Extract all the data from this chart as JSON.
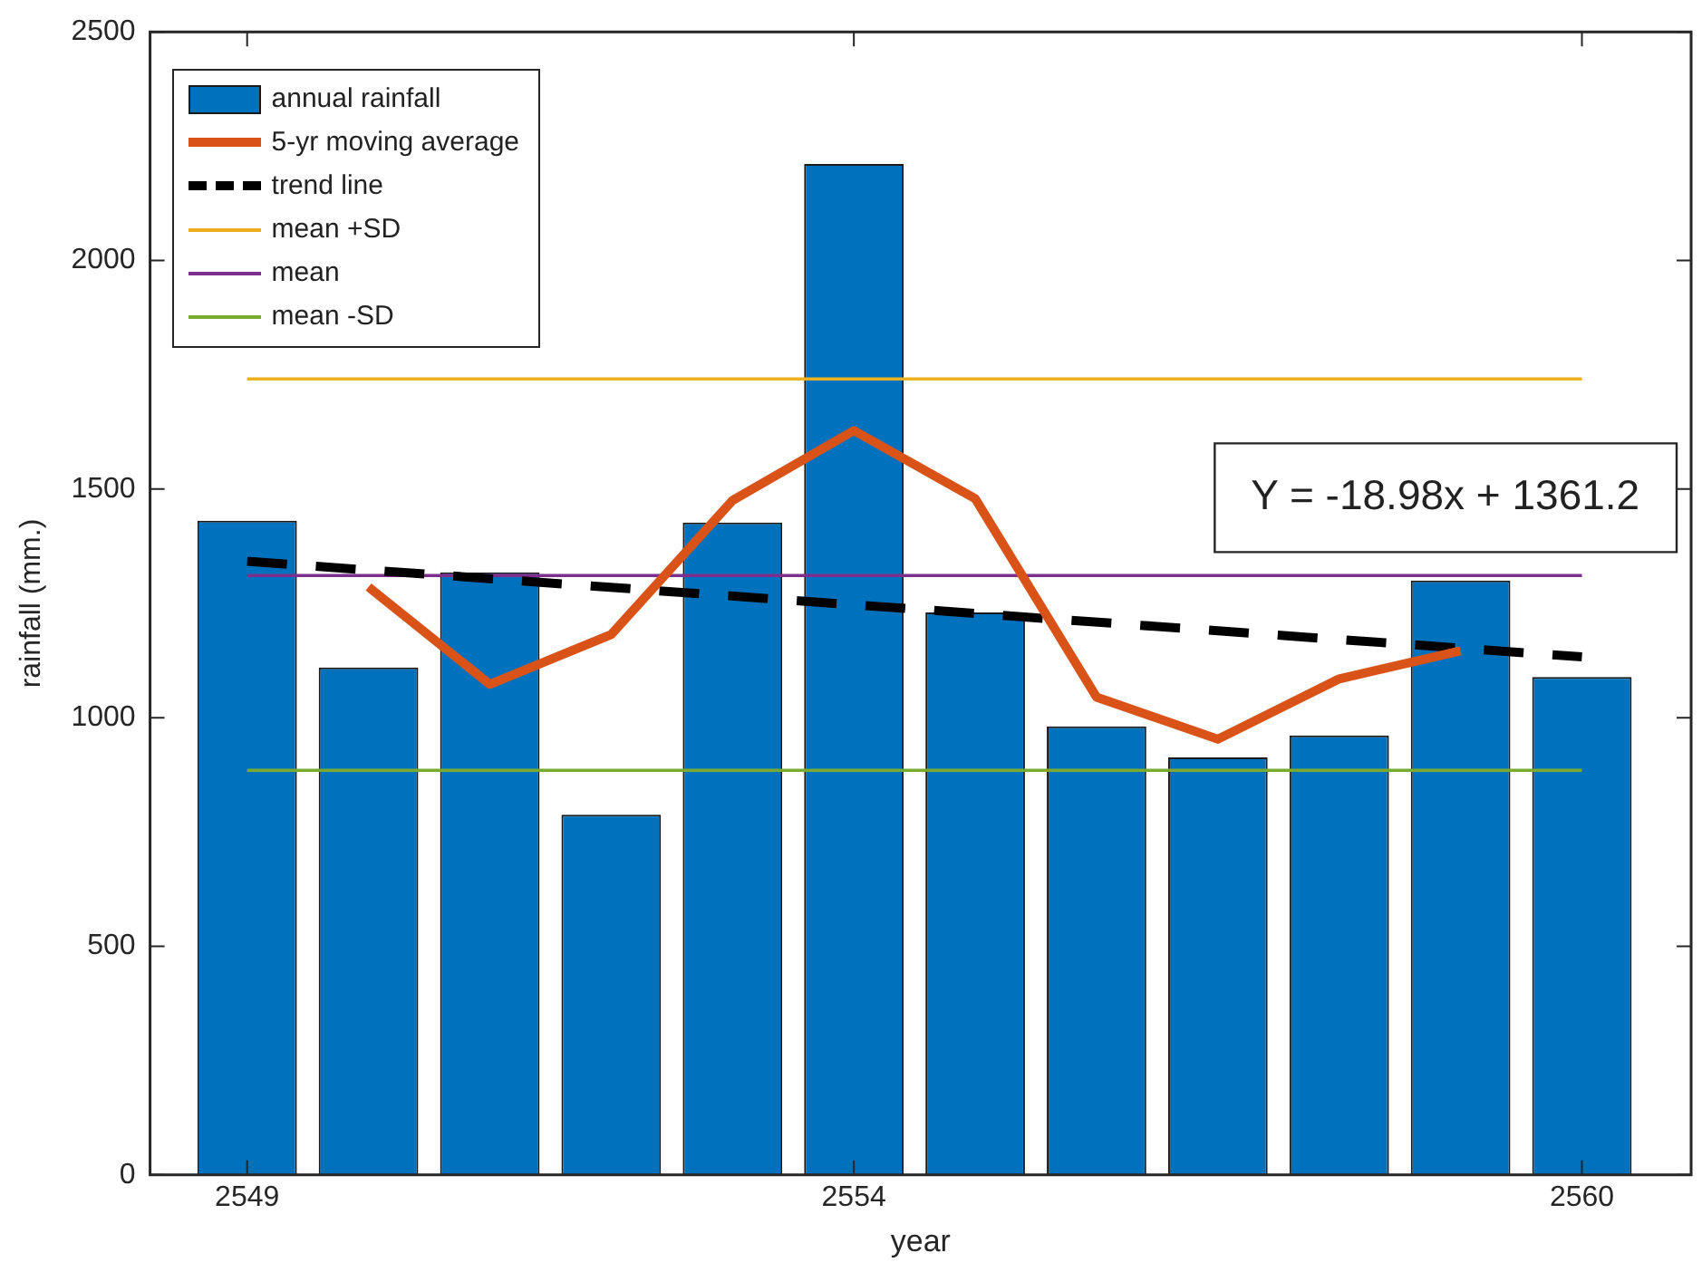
{
  "chart_data": {
    "type": "bar",
    "xlabel": "year",
    "ylabel": "rainfall (mm.)",
    "x": [
      2549,
      2550,
      2551,
      2552,
      2553,
      2554,
      2555,
      2556,
      2557,
      2558,
      2559,
      2560
    ],
    "series": [
      {
        "name": "annual rainfall",
        "color": "#0072bd",
        "values": [
          1431,
          1110,
          1318,
          788,
          1427,
          2211,
          1230,
          981,
          913,
          961,
          1300,
          1089
        ]
      },
      {
        "name": "5-yr moving average",
        "type": "line",
        "color": "#d95319",
        "x": [
          2550,
          2551,
          2552,
          2553,
          2554,
          2555,
          2556,
          2557,
          2558,
          2559
        ],
        "values": [
          1286,
          1073,
          1182,
          1475,
          1628,
          1479,
          1045,
          953,
          1085,
          1146
        ]
      },
      {
        "name": "trend line",
        "type": "line",
        "color": "#000000",
        "line_style": "dashed",
        "x": [
          2549,
          2560
        ],
        "values": [
          1342,
          1133
        ]
      },
      {
        "name": "mean +SD",
        "type": "line",
        "color": "#edb120",
        "x": [
          2549,
          2560
        ],
        "values": [
          1741,
          1741
        ]
      },
      {
        "name": "mean",
        "type": "line",
        "color": "#7e2f8e",
        "x": [
          2549,
          2560
        ],
        "values": [
          1311,
          1311
        ]
      },
      {
        "name": "mean -SD",
        "type": "line",
        "color": "#77ac30",
        "x": [
          2549,
          2560
        ],
        "values": [
          885,
          885
        ]
      }
    ],
    "annotations": [
      "Y = -18.98x + 1361.2"
    ],
    "xlim": [
      2548.2,
      2560.9
    ],
    "xticks": [
      2549,
      2554,
      2560
    ],
    "ylim": [
      0,
      2500
    ],
    "yticks": [
      0,
      500,
      1000,
      1500,
      2000,
      2500
    ],
    "grid": false,
    "legend": "top left"
  }
}
